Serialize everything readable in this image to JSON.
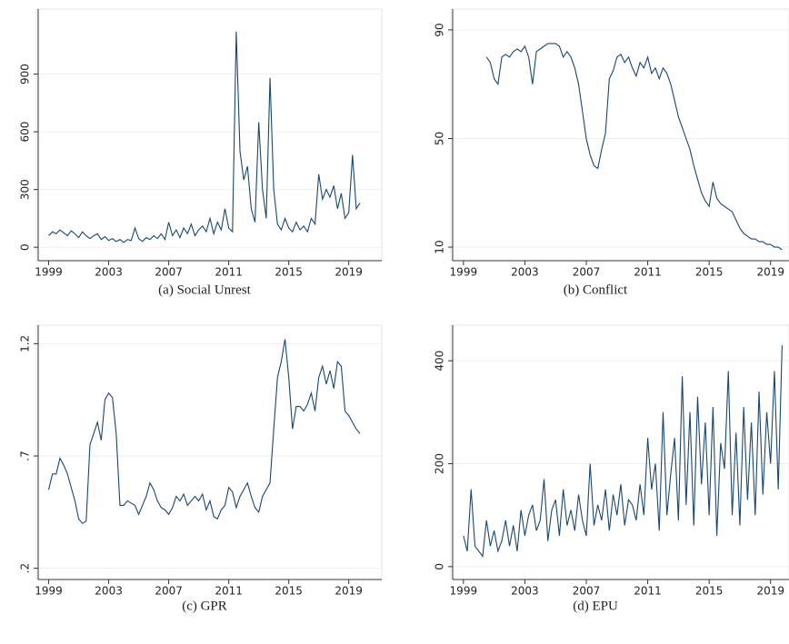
{
  "chart_data": [
    {
      "type": "line",
      "title": "(a) Social Unrest",
      "color": "#1a476f",
      "grid": true,
      "xlim": [
        1998.3,
        2021.2
      ],
      "xticks": [
        1999,
        2003,
        2007,
        2011,
        2015,
        2019
      ],
      "ylim": [
        -70,
        1200
      ],
      "yticks": [
        0,
        300,
        600,
        900
      ],
      "x": [
        1999,
        1999.25,
        1999.5,
        1999.75,
        2000,
        2000.25,
        2000.5,
        2000.75,
        2001,
        2001.25,
        2001.5,
        2001.75,
        2002,
        2002.25,
        2002.5,
        2002.75,
        2003,
        2003.25,
        2003.5,
        2003.75,
        2004,
        2004.25,
        2004.5,
        2004.75,
        2005,
        2005.25,
        2005.5,
        2005.75,
        2006,
        2006.25,
        2006.5,
        2006.75,
        2007,
        2007.25,
        2007.5,
        2007.75,
        2008,
        2008.25,
        2008.5,
        2008.75,
        2009,
        2009.25,
        2009.5,
        2009.75,
        2010,
        2010.25,
        2010.5,
        2010.75,
        2011,
        2011.25,
        2011.5,
        2011.75,
        2012,
        2012.25,
        2012.5,
        2012.75,
        2013,
        2013.25,
        2013.5,
        2013.75,
        2014,
        2014.25,
        2014.5,
        2014.75,
        2015,
        2015.25,
        2015.5,
        2015.75,
        2016,
        2016.25,
        2016.5,
        2016.75,
        2017,
        2017.25,
        2017.5,
        2017.75,
        2018,
        2018.25,
        2018.5,
        2018.75,
        2019,
        2019.25,
        2019.5,
        2019.75
      ],
      "values": [
        60,
        80,
        70,
        90,
        75,
        60,
        85,
        70,
        50,
        80,
        60,
        45,
        60,
        70,
        40,
        55,
        35,
        45,
        30,
        40,
        25,
        40,
        35,
        100,
        45,
        30,
        50,
        40,
        60,
        45,
        70,
        40,
        130,
        60,
        90,
        50,
        100,
        70,
        120,
        60,
        90,
        110,
        80,
        150,
        70,
        130,
        90,
        200,
        100,
        80,
        1120,
        500,
        350,
        420,
        200,
        130,
        650,
        300,
        150,
        880,
        300,
        120,
        90,
        150,
        100,
        80,
        130,
        90,
        110,
        80,
        150,
        120,
        380,
        250,
        300,
        260,
        320,
        200,
        280,
        150,
        180,
        480,
        200,
        230
      ]
    },
    {
      "type": "line",
      "title": "(b) Conflict",
      "color": "#1a476f",
      "grid": true,
      "xlim": [
        1998.3,
        2020.2
      ],
      "xticks": [
        1999,
        2003,
        2007,
        2011,
        2015,
        2019
      ],
      "ylim": [
        5,
        95
      ],
      "yticks": [
        10,
        50,
        90
      ],
      "x": [
        2000.5,
        2000.75,
        2001,
        2001.25,
        2001.5,
        2001.75,
        2002,
        2002.25,
        2002.5,
        2002.75,
        2003,
        2003.25,
        2003.5,
        2003.75,
        2004,
        2004.25,
        2004.5,
        2004.75,
        2005,
        2005.25,
        2005.5,
        2005.75,
        2006,
        2006.25,
        2006.5,
        2006.75,
        2007,
        2007.25,
        2007.5,
        2007.75,
        2008,
        2008.25,
        2008.5,
        2008.75,
        2009,
        2009.25,
        2009.5,
        2009.75,
        2010,
        2010.25,
        2010.5,
        2010.75,
        2011,
        2011.25,
        2011.5,
        2011.75,
        2012,
        2012.25,
        2012.5,
        2012.75,
        2013,
        2013.25,
        2013.5,
        2013.75,
        2014,
        2014.25,
        2014.5,
        2014.75,
        2015,
        2015.25,
        2015.5,
        2015.75,
        2016,
        2016.25,
        2016.5,
        2016.75,
        2017,
        2017.25,
        2017.5,
        2017.75,
        2018,
        2018.25,
        2018.5,
        2018.75,
        2019,
        2019.25,
        2019.5,
        2019.75
      ],
      "values": [
        80,
        78,
        72,
        70,
        80,
        81,
        80,
        82,
        83,
        82,
        84,
        80,
        70,
        82,
        83,
        84,
        85,
        85,
        85,
        84,
        80,
        82,
        80,
        76,
        70,
        60,
        50,
        44,
        40,
        39,
        46,
        52,
        72,
        75,
        80,
        81,
        78,
        80,
        76,
        73,
        78,
        76,
        80,
        74,
        76,
        72,
        76,
        74,
        70,
        64,
        58,
        54,
        50,
        46,
        40,
        35,
        30,
        27,
        25,
        34,
        28,
        26,
        25,
        24,
        23,
        20,
        17,
        15,
        14,
        13,
        13,
        12,
        12,
        11,
        11,
        10,
        10,
        9
      ]
    },
    {
      "type": "line",
      "title": "(c) GPR",
      "color": "#1a476f",
      "grid": true,
      "xlim": [
        1998.3,
        2021.2
      ],
      "xticks": [
        1999,
        2003,
        2007,
        2011,
        2015,
        2019
      ],
      "ylim": [
        0.15,
        1.25
      ],
      "yticks": [
        {
          "value": 0.2,
          "label": ".2"
        },
        {
          "value": 0.7,
          "label": ".7"
        },
        1.2
      ],
      "x": [
        1999,
        1999.25,
        1999.5,
        1999.75,
        2000,
        2000.25,
        2000.5,
        2000.75,
        2001,
        2001.25,
        2001.5,
        2001.75,
        2002,
        2002.25,
        2002.5,
        2002.75,
        2003,
        2003.25,
        2003.5,
        2003.75,
        2004,
        2004.25,
        2004.5,
        2004.75,
        2005,
        2005.25,
        2005.5,
        2005.75,
        2006,
        2006.25,
        2006.5,
        2006.75,
        2007,
        2007.25,
        2007.5,
        2007.75,
        2008,
        2008.25,
        2008.5,
        2008.75,
        2009,
        2009.25,
        2009.5,
        2009.75,
        2010,
        2010.25,
        2010.5,
        2010.75,
        2011,
        2011.25,
        2011.5,
        2011.75,
        2012,
        2012.25,
        2012.5,
        2012.75,
        2013,
        2013.25,
        2013.5,
        2013.75,
        2014,
        2014.25,
        2014.5,
        2014.75,
        2015,
        2015.25,
        2015.5,
        2015.75,
        2016,
        2016.25,
        2016.5,
        2016.75,
        2017,
        2017.25,
        2017.5,
        2017.75,
        2018,
        2018.25,
        2018.5,
        2018.75,
        2019,
        2019.25,
        2019.5,
        2019.75
      ],
      "values": [
        0.55,
        0.62,
        0.62,
        0.69,
        0.66,
        0.62,
        0.56,
        0.5,
        0.42,
        0.4,
        0.41,
        0.75,
        0.8,
        0.85,
        0.77,
        0.95,
        0.98,
        0.96,
        0.8,
        0.48,
        0.48,
        0.5,
        0.49,
        0.48,
        0.44,
        0.48,
        0.52,
        0.58,
        0.55,
        0.5,
        0.47,
        0.46,
        0.44,
        0.47,
        0.52,
        0.5,
        0.53,
        0.48,
        0.5,
        0.52,
        0.5,
        0.53,
        0.46,
        0.5,
        0.43,
        0.42,
        0.46,
        0.48,
        0.56,
        0.54,
        0.47,
        0.52,
        0.55,
        0.58,
        0.52,
        0.47,
        0.45,
        0.52,
        0.55,
        0.58,
        0.82,
        1.05,
        1.12,
        1.22,
        1.05,
        0.82,
        0.92,
        0.92,
        0.9,
        0.93,
        0.98,
        0.9,
        1.05,
        1.1,
        1.02,
        1.08,
        1.0,
        1.12,
        1.1,
        0.9,
        0.88,
        0.85,
        0.82,
        0.8
      ]
    },
    {
      "type": "line",
      "title": "(d) EPU",
      "color": "#1a476f",
      "grid": true,
      "xlim": [
        1998.3,
        2020.2
      ],
      "xticks": [
        1999,
        2003,
        2007,
        2011,
        2015,
        2019
      ],
      "ylim": [
        -25,
        455
      ],
      "yticks": [
        0,
        200,
        400
      ],
      "x": [
        1999,
        1999.25,
        1999.5,
        1999.75,
        2000,
        2000.25,
        2000.5,
        2000.75,
        2001,
        2001.25,
        2001.5,
        2001.75,
        2002,
        2002.25,
        2002.5,
        2002.75,
        2003,
        2003.25,
        2003.5,
        2003.75,
        2004,
        2004.25,
        2004.5,
        2004.75,
        2005,
        2005.25,
        2005.5,
        2005.75,
        2006,
        2006.25,
        2006.5,
        2006.75,
        2007,
        2007.25,
        2007.5,
        2007.75,
        2008,
        2008.25,
        2008.5,
        2008.75,
        2009,
        2009.25,
        2009.5,
        2009.75,
        2010,
        2010.25,
        2010.5,
        2010.75,
        2011,
        2011.25,
        2011.5,
        2011.75,
        2012,
        2012.25,
        2012.5,
        2012.75,
        2013,
        2013.25,
        2013.5,
        2013.75,
        2014,
        2014.25,
        2014.5,
        2014.75,
        2015,
        2015.25,
        2015.5,
        2015.75,
        2016,
        2016.25,
        2016.5,
        2016.75,
        2017,
        2017.25,
        2017.5,
        2017.75,
        2018,
        2018.25,
        2018.5,
        2018.75,
        2019,
        2019.25,
        2019.5,
        2019.75
      ],
      "values": [
        60,
        30,
        150,
        40,
        30,
        20,
        90,
        40,
        70,
        30,
        50,
        90,
        40,
        80,
        30,
        110,
        60,
        100,
        120,
        70,
        90,
        170,
        50,
        110,
        130,
        60,
        150,
        80,
        110,
        70,
        140,
        90,
        60,
        200,
        80,
        120,
        90,
        150,
        70,
        140,
        100,
        160,
        80,
        130,
        120,
        90,
        160,
        100,
        250,
        150,
        200,
        70,
        300,
        100,
        180,
        250,
        90,
        370,
        120,
        300,
        80,
        330,
        160,
        280,
        100,
        310,
        60,
        240,
        190,
        380,
        100,
        260,
        80,
        310,
        130,
        280,
        100,
        340,
        140,
        300,
        200,
        380,
        150,
        430
      ]
    }
  ]
}
